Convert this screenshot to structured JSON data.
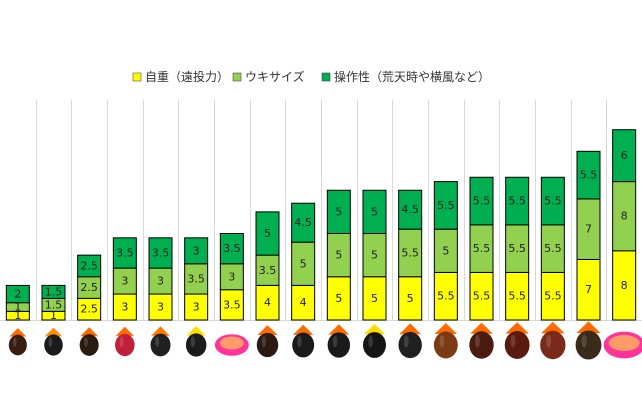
{
  "chart_data": {
    "type": "bar",
    "stacked": true,
    "title": "",
    "xlabel": "",
    "ylabel": "",
    "ylim": [
      0,
      22
    ],
    "grid": "vertical",
    "legend": "top",
    "categories": [
      "",
      "",
      "",
      "",
      "",
      "",
      "",
      "",
      "",
      "",
      "",
      "",
      "",
      "",
      "",
      "",
      "",
      ""
    ],
    "series": [
      {
        "name": "自重（遠投力）",
        "color": "#ffff00",
        "values": [
          1,
          1,
          2.5,
          3,
          3,
          3,
          3.5,
          4,
          4,
          5,
          5,
          5,
          5.5,
          5.5,
          5.5,
          5.5,
          7,
          8
        ]
      },
      {
        "name": "ウキサイズ",
        "color": "#92d050",
        "values": [
          1,
          1.5,
          2.5,
          3,
          3,
          3.5,
          3,
          3.5,
          5,
          5,
          5,
          5.5,
          5,
          5.5,
          5.5,
          5.5,
          7,
          8
        ]
      },
      {
        "name": "操作性（荒天時や横風など）",
        "color": "#00b050",
        "values": [
          2,
          1.5,
          2.5,
          3.5,
          3.5,
          3,
          3.5,
          5,
          4.5,
          5,
          5,
          4.5,
          5.5,
          5.5,
          5.5,
          5.5,
          5.5,
          6
        ]
      }
    ]
  }
}
